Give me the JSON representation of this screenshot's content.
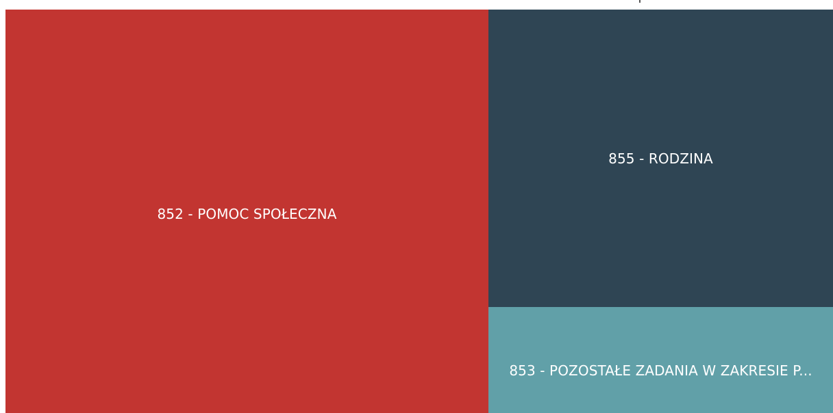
{
  "chart_data": {
    "type": "treemap",
    "title": "",
    "categories": [
      "852 - POMOC SPOŁECZNA",
      "855 - RODZINA",
      "853 - POZOSTAŁE ZADANIA W ZAKRESIE P..."
    ],
    "values": [
      58.4,
      30.1,
      11.5
    ],
    "value_unit": "approximate share of total (%)",
    "colors": [
      "#c23531",
      "#2f4554",
      "#61a0a8"
    ]
  }
}
